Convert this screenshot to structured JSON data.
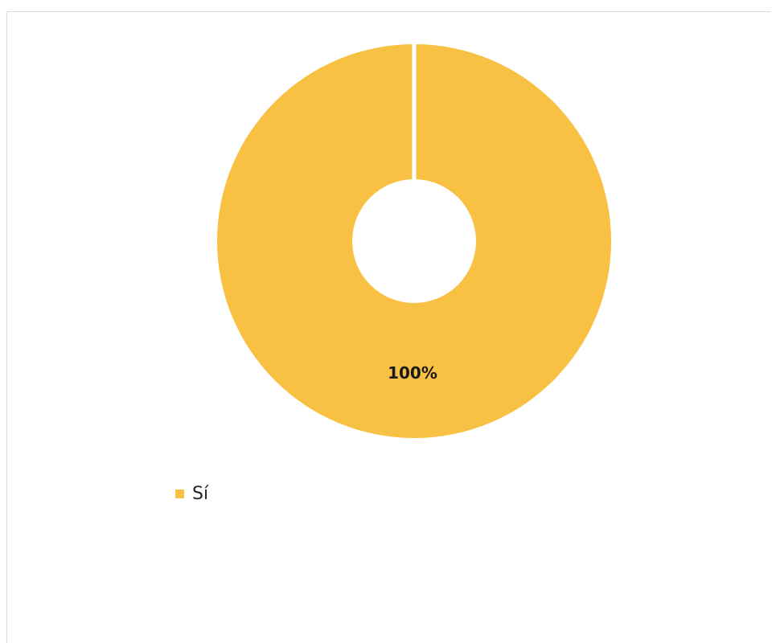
{
  "chart_data": {
    "type": "pie",
    "style": "donut",
    "categories": [
      "Sí"
    ],
    "values": [
      100
    ],
    "data_labels": [
      "100%"
    ],
    "colors": [
      "#F9C143"
    ],
    "separator_color": "#ffffff",
    "legend": {
      "placement": "bottom-left",
      "entries": [
        {
          "label": "Sí",
          "color": "#F9C143"
        }
      ]
    }
  }
}
